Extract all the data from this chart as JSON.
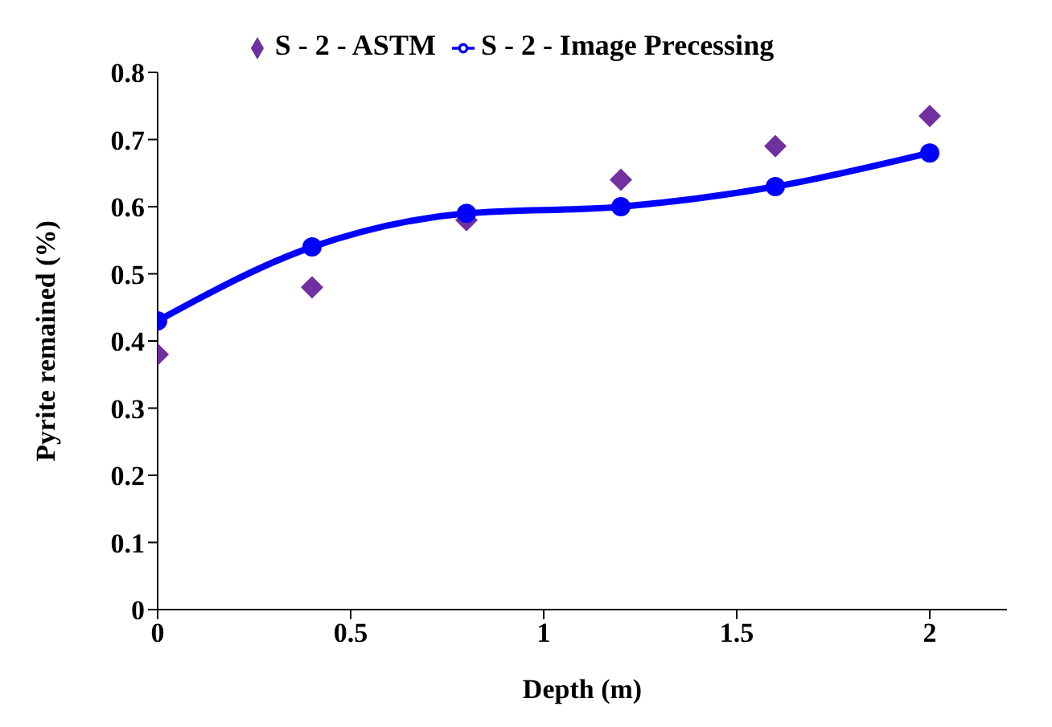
{
  "chart_data": {
    "type": "line",
    "xlabel": "Depth (m)",
    "ylabel": "Pyrite remained (%)",
    "x": [
      0,
      0.4,
      0.8,
      1.2,
      1.6,
      2
    ],
    "series": [
      {
        "name": "S - 2 - ASTM",
        "type": "scatter",
        "marker": "diamond",
        "color": "#7030a0",
        "values": [
          0.38,
          0.48,
          0.58,
          0.64,
          0.69,
          0.735
        ]
      },
      {
        "name": "S - 2 - Image Precessing",
        "marker": "circle",
        "color": "#0000ff",
        "values": [
          0.43,
          0.54,
          0.59,
          0.6,
          0.63,
          0.68
        ]
      }
    ],
    "xlim": [
      0,
      2.2
    ],
    "xticks": [
      0,
      0.5,
      1,
      1.5,
      2
    ],
    "ylim": [
      0,
      0.8
    ],
    "yticks": [
      0,
      0.1,
      0.2,
      0.3,
      0.4,
      0.5,
      0.6,
      0.7,
      0.8
    ],
    "grid": false,
    "legend": "top"
  }
}
